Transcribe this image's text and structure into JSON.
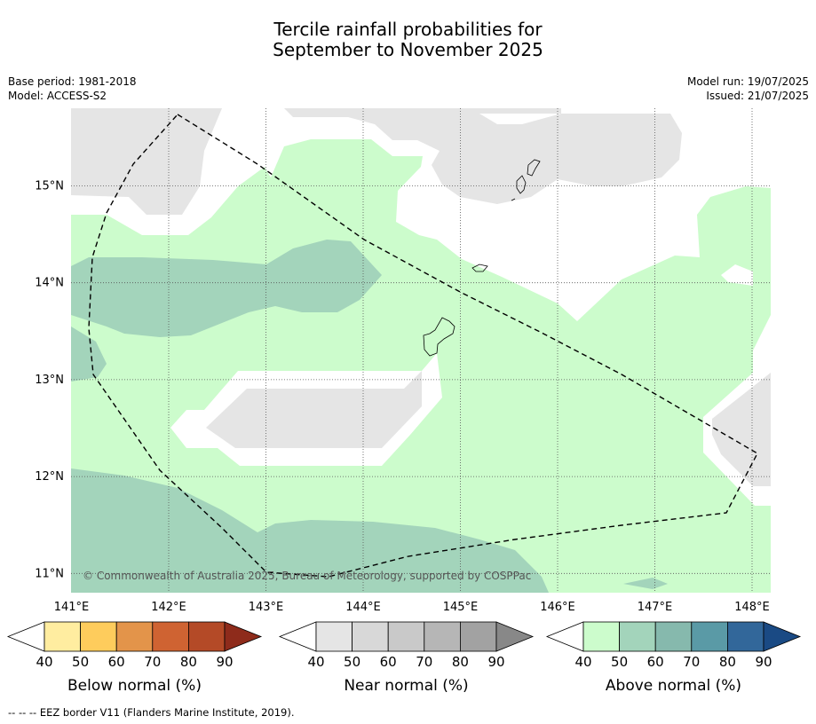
{
  "header": {
    "title_line1": "Tercile rainfall probabilities for",
    "title_line2": "September to November 2025"
  },
  "meta": {
    "base_period": "Base period: 1981-2018",
    "model": "Model: ACCESS-S2",
    "model_run": "Model run: 19/07/2025",
    "issued": "Issued: 21/07/2025"
  },
  "copyright": "© Commonwealth of Australia 2025, Bureau of Meteorology, supported by COSPPac",
  "footnote": "-- -- -- EEZ border V11 (Flanders Marine Institute, 2019).",
  "chart_data": {
    "type": "heatmap",
    "map_type": "tercile probability contour map",
    "region": "Guam and Northern Mariana Islands",
    "lon_range": [
      141.0,
      148.2
    ],
    "lat_range": [
      10.8,
      15.8
    ],
    "lon_ticks": [
      "141°E",
      "142°E",
      "143°E",
      "144°E",
      "145°E",
      "146°E",
      "147°E",
      "148°E"
    ],
    "lat_ticks": [
      "15°N",
      "14°N",
      "13°N",
      "12°N",
      "11°N"
    ],
    "gridlines": true,
    "boundary": "EEZ border (dashed)",
    "legends": [
      {
        "label": "Below normal (%)",
        "ticks": [
          "40",
          "50",
          "60",
          "70",
          "80",
          "90"
        ],
        "colors": [
          "#ffeda0",
          "#fecc5c",
          "#e3944a",
          "#cf6332",
          "#b44a27",
          "#8e2b1b"
        ]
      },
      {
        "label": "Near normal (%)",
        "ticks": [
          "40",
          "50",
          "60",
          "70",
          "80",
          "90"
        ],
        "colors": [
          "#e5e5e5",
          "#d8d8d8",
          "#c9c9c9",
          "#b6b6b6",
          "#a2a2a2",
          "#888888"
        ]
      },
      {
        "label": "Above normal (%)",
        "ticks": [
          "40",
          "50",
          "60",
          "70",
          "80",
          "90"
        ],
        "colors": [
          "#ccfccc",
          "#a3d4bb",
          "#86b9ad",
          "#5a9aa6",
          "#32679a",
          "#1a4a84"
        ]
      }
    ],
    "regions": [
      {
        "category": "above normal",
        "range": "40-50",
        "color": "#ccfccc",
        "area": "most of the map including Guam and southern islands"
      },
      {
        "category": "above normal",
        "range": "50-60",
        "color": "#a3d4bb",
        "area": "west band near 14°N and southern band near 11°N"
      },
      {
        "category": "near normal",
        "range": "40-50",
        "color": "#e5e5e5",
        "area": "north-west, north around 15.5°N, central band near 12.5°N, far east"
      }
    ]
  }
}
